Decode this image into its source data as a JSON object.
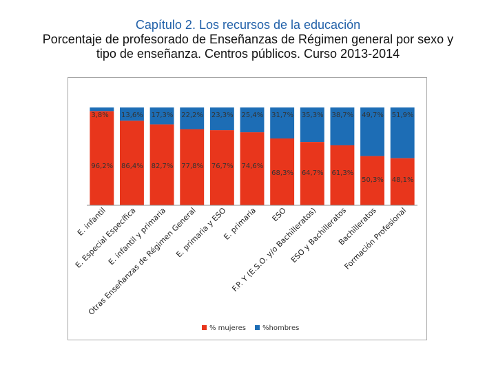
{
  "slide": {
    "title": "Capítulo 2. Los recursos de la educación",
    "subtitle": "Porcentaje de profesorado de Enseñanzas de Régimen general por sexo y tipo de enseñanza.  Centros públicos. Curso 2013-2014"
  },
  "chart_data": {
    "type": "bar",
    "stacked": true,
    "categories": [
      "E. infantil",
      "E. Especial Específica",
      "E. infantil y primaria",
      "Otras Enseñanzas de Régimen General",
      "E. primaria y ESO",
      "E. primaria",
      "ESO",
      "F.P. Y (E.S.O. y/o Bachilleratos)",
      "ESO y Bachilleratos",
      "Bachilleratos",
      "Formación Profesional"
    ],
    "series": [
      {
        "name": "% mujeres",
        "color": "#e8361c",
        "values": [
          96.2,
          86.4,
          82.7,
          77.8,
          76.7,
          74.6,
          68.3,
          64.7,
          61.3,
          50.3,
          48.1
        ]
      },
      {
        "name": "%hombres",
        "color": "#1d6db5",
        "values": [
          3.8,
          13.6,
          17.3,
          22.2,
          23.3,
          25.4,
          31.7,
          35.3,
          38.7,
          49.7,
          51.9
        ]
      }
    ],
    "data_labels": {
      "mujeres": [
        "96,2%",
        "86,4%",
        "82,7%",
        "77,8%",
        "76,7%",
        "74,6%",
        "68,3%",
        "64,7%",
        "61,3%",
        "50,3%",
        "48,1%"
      ],
      "hombres": [
        "3,8%",
        "13,6%",
        "17,3%",
        "22,2%",
        "23,3%",
        "25,4%",
        "31,7%",
        "35,3%",
        "38,7%",
        "49,7%",
        "51,9%"
      ]
    },
    "ylim": [
      0,
      100
    ],
    "grid": false,
    "legend": "bottom"
  }
}
